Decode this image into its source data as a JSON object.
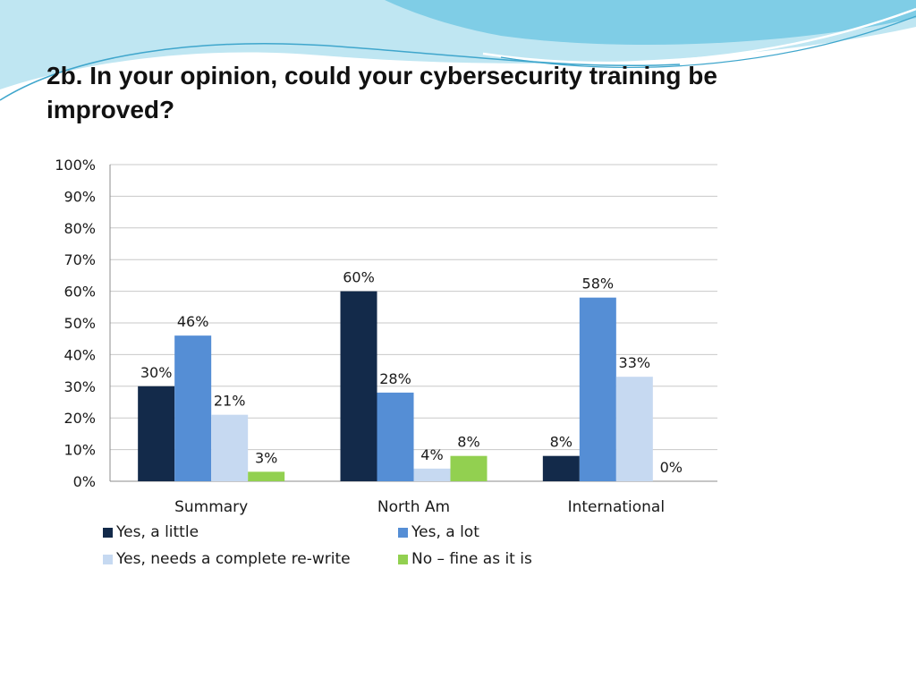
{
  "slide": {
    "title": "2b. In your opinion, could your cybersecurity training be improved?"
  },
  "theme": {
    "swoosh_light": "#bfe6f2",
    "swoosh_mid": "#7fcde6",
    "swoosh_dark": "#3fa6cc"
  },
  "chart_data": {
    "type": "bar",
    "categories": [
      "Summary",
      "North Am",
      "International"
    ],
    "series": [
      {
        "name": "Yes, a little",
        "color": "#132a4a",
        "values": [
          30,
          60,
          8
        ],
        "labels": [
          "30%",
          "60%",
          "8%"
        ]
      },
      {
        "name": "Yes, a lot",
        "color": "#558ed5",
        "values": [
          46,
          28,
          58
        ],
        "labels": [
          "46%",
          "28%",
          "58%"
        ]
      },
      {
        "name": "Yes, needs a complete re-write",
        "color": "#c6d9f1",
        "values": [
          21,
          4,
          33
        ],
        "labels": [
          "21%",
          "4%",
          "33%"
        ]
      },
      {
        "name": "No – fine as it is",
        "color": "#92d050",
        "values": [
          3,
          8,
          0
        ],
        "labels": [
          "3%",
          "8%",
          "0%"
        ]
      }
    ],
    "ylim": [
      0,
      100
    ],
    "yticks": [
      "0%",
      "10%",
      "20%",
      "30%",
      "40%",
      "50%",
      "60%",
      "70%",
      "80%",
      "90%",
      "100%"
    ],
    "grid": true,
    "legend_position": "bottom"
  }
}
